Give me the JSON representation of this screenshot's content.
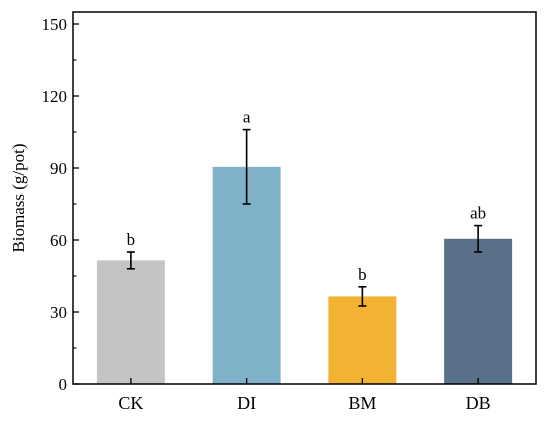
{
  "chart_data": {
    "type": "bar",
    "ylabel": "Biomass (g/pot)",
    "xlabel": "",
    "ylim": [
      0,
      155
    ],
    "yticks": [
      0,
      30,
      60,
      90,
      120,
      150
    ],
    "categories": [
      "CK",
      "DI",
      "BM",
      "DB"
    ],
    "values": [
      51.5,
      90.5,
      36.5,
      60.5
    ],
    "errors": [
      3.5,
      15.5,
      4.0,
      5.5
    ],
    "significance": [
      "b",
      "a",
      "b",
      "ab"
    ],
    "colors": [
      "#c4c4c4",
      "#7fb2c9",
      "#f2b332",
      "#5a7088"
    ],
    "grid": false,
    "legend": "none"
  }
}
